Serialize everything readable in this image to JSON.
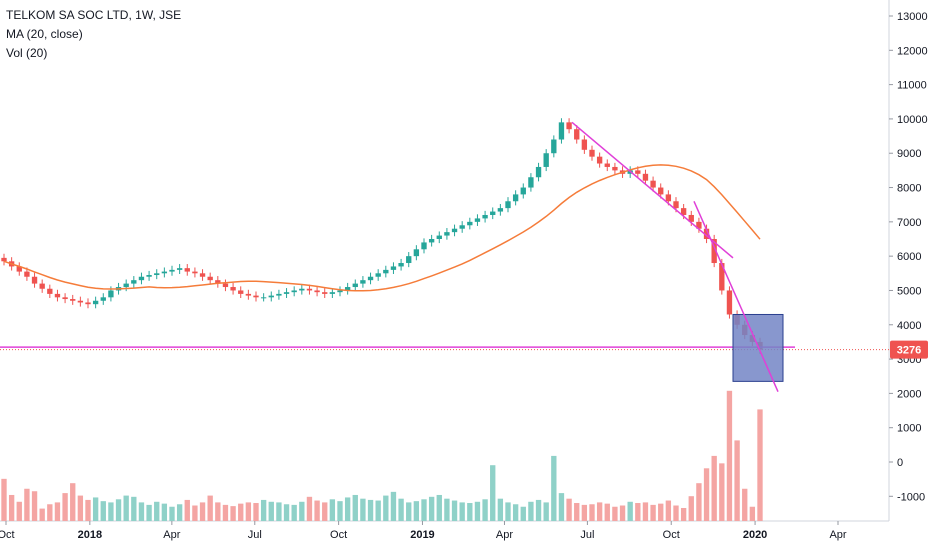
{
  "legend": {
    "title": "TELKOM SA SOC LTD, 1W, JSE",
    "ma": "MA (20, close)",
    "vol": "Vol (20)"
  },
  "colors": {
    "up": "#26a69a",
    "down": "#ef5350",
    "up_vol": "#8fd1c8",
    "down_vol": "#f4a5a3",
    "ma": "#f57c3a",
    "trendline": "#e040d8",
    "box_fill": "#7385c6",
    "box_border": "#2a3f8f",
    "price_label": "#ef5350"
  },
  "chart_data": {
    "type": "candlestick",
    "price_axis": {
      "ticks": [
        "13000",
        "12000",
        "11000",
        "10000",
        "9000",
        "8000",
        "7000",
        "6000",
        "5000",
        "4000",
        "3000",
        "2000",
        "1000",
        "0",
        "-1000"
      ],
      "range": [
        -1900,
        13500
      ]
    },
    "time_axis": {
      "labels": [
        {
          "text": "Oct",
          "date": "2017-10-01",
          "bold": false
        },
        {
          "text": "2018",
          "date": "2018-01-01",
          "bold": true
        },
        {
          "text": "Apr",
          "date": "2018-04-01",
          "bold": false
        },
        {
          "text": "Jul",
          "date": "2018-07-01",
          "bold": false
        },
        {
          "text": "Oct",
          "date": "2018-10-01",
          "bold": false
        },
        {
          "text": "2019",
          "date": "2019-01-01",
          "bold": true
        },
        {
          "text": "Apr",
          "date": "2019-04-01",
          "bold": false
        },
        {
          "text": "Jul",
          "date": "2019-07-01",
          "bold": false
        },
        {
          "text": "Oct",
          "date": "2019-10-01",
          "bold": false
        },
        {
          "text": "2020",
          "date": "2020-01-01",
          "bold": true
        },
        {
          "text": "Apr",
          "date": "2020-04-01",
          "bold": false
        }
      ]
    },
    "last_price": "3276",
    "close": [
      5850,
      5700,
      5550,
      5400,
      5200,
      5050,
      4900,
      4800,
      4750,
      4700,
      4650,
      4600,
      4700,
      4800,
      5000,
      5100,
      5200,
      5300,
      5400,
      5450,
      5500,
      5550,
      5600,
      5650,
      5550,
      5500,
      5400,
      5300,
      5200,
      5100,
      5000,
      4900,
      4850,
      4800,
      4800,
      4850,
      4900,
      4950,
      5000,
      5050,
      5000,
      4950,
      4900,
      4950,
      5000,
      5100,
      5200,
      5300,
      5400,
      5500,
      5600,
      5700,
      5800,
      6000,
      6200,
      6400,
      6500,
      6600,
      6700,
      6800,
      6900,
      7000,
      7100,
      7200,
      7300,
      7400,
      7600,
      7800,
      8000,
      8300,
      8600,
      9000,
      9400,
      9900,
      9700,
      9400,
      9100,
      8900,
      8700,
      8600,
      8500,
      8400,
      8500,
      8400,
      8200,
      8000,
      7800,
      7600,
      7400,
      7200,
      7000,
      6800,
      6500,
      5800,
      5000,
      4300,
      4000,
      3700,
      3500,
      3276
    ],
    "volume": [
      680,
      420,
      310,
      520,
      480,
      200,
      270,
      300,
      450,
      610,
      410,
      340,
      380,
      320,
      300,
      350,
      410,
      390,
      300,
      260,
      310,
      280,
      230,
      270,
      340,
      250,
      300,
      410,
      300,
      260,
      240,
      280,
      300,
      290,
      340,
      310,
      300,
      270,
      260,
      310,
      390,
      330,
      300,
      350,
      320,
      380,
      420,
      360,
      340,
      330,
      410,
      470,
      360,
      300,
      320,
      350,
      390,
      420,
      360,
      330,
      300,
      290,
      310,
      350,
      900,
      360,
      300,
      270,
      230,
      310,
      340,
      300,
      1050,
      450,
      360,
      290,
      260,
      270,
      300,
      280,
      230,
      250,
      310,
      290,
      300,
      260,
      280,
      330,
      250,
      210,
      400,
      610,
      850,
      1050,
      930,
      2100,
      1300,
      520,
      230,
      1800
    ],
    "ma20_note": "20-period moving average of close",
    "annotations": {
      "horizontal_line_price": 3350,
      "dotted_line_price": 3276,
      "rect": {
        "price_top": 4300,
        "price_bottom": 2350
      },
      "trendlines": [
        {
          "from": [
            9900,
            0
          ],
          "to": [
            5950,
            1
          ]
        },
        {
          "from": [
            7600,
            0
          ],
          "to": [
            2050,
            1
          ]
        }
      ]
    }
  }
}
